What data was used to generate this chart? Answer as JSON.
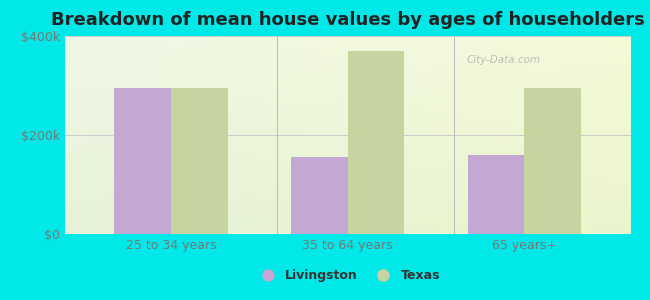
{
  "title": "Breakdown of mean house values by ages of householders",
  "categories": [
    "25 to 34 years",
    "35 to 64 years",
    "65 years+"
  ],
  "livingston_values": [
    295000,
    155000,
    160000
  ],
  "texas_values": [
    295000,
    370000,
    295000
  ],
  "livingston_color": "#c4a8d4",
  "texas_color": "#c8d4a0",
  "background_color": "#00e8e8",
  "ylim": [
    0,
    400000
  ],
  "yticks": [
    0,
    200000,
    400000
  ],
  "ytick_labels": [
    "$0",
    "$200k",
    "$400k"
  ],
  "bar_width": 0.32,
  "legend_labels": [
    "Livingston",
    "Texas"
  ],
  "title_fontsize": 13,
  "tick_fontsize": 9,
  "legend_fontsize": 9,
  "grid_color": "#cccccc",
  "separator_color": "#bbbbbb"
}
